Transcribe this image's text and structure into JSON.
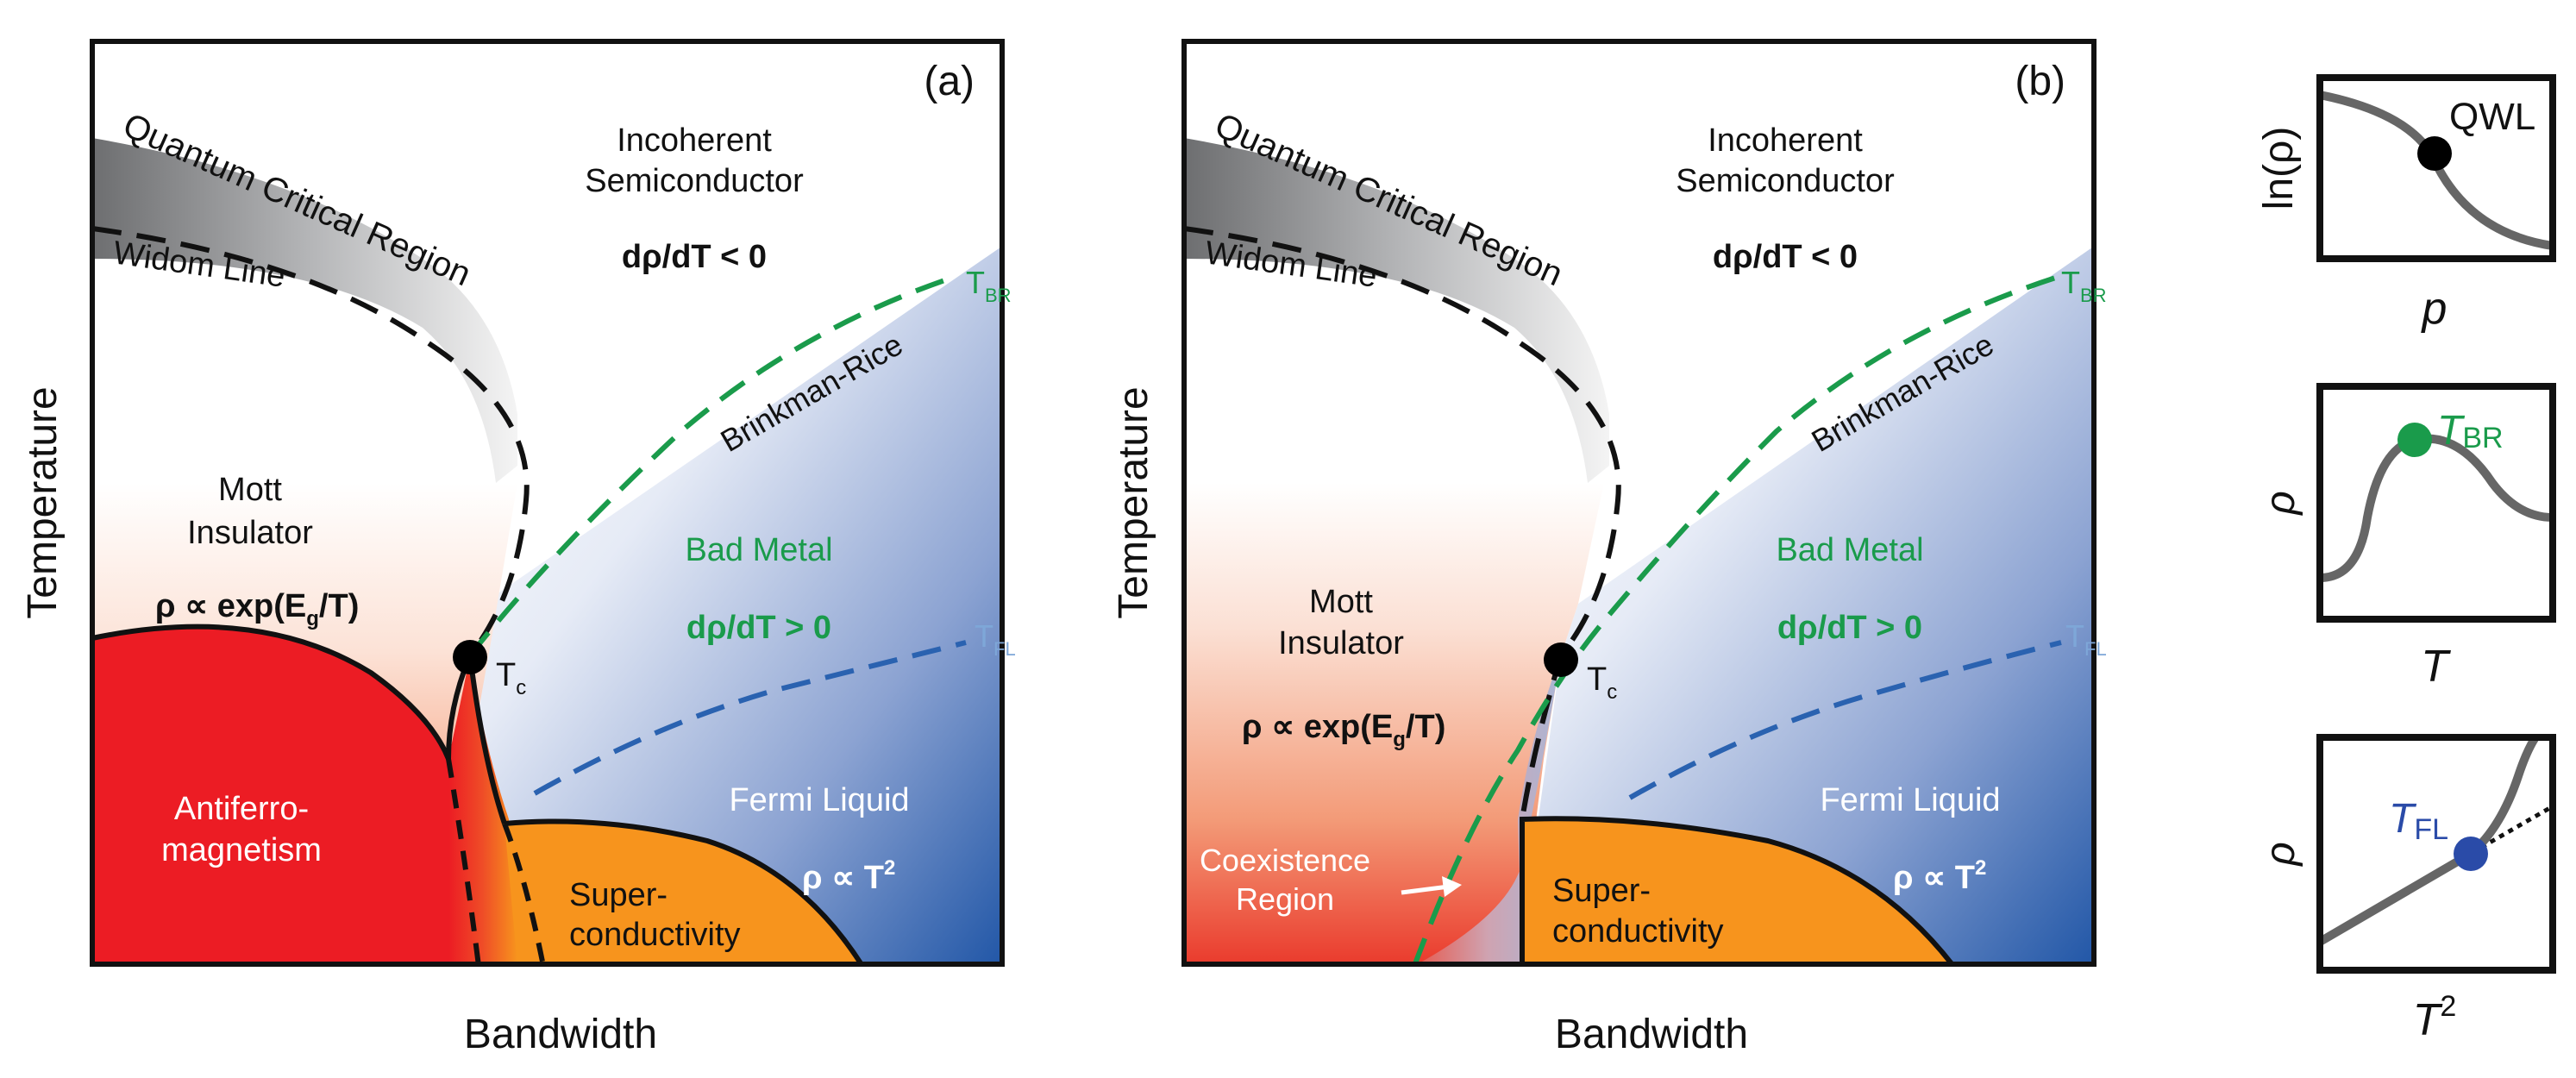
{
  "colors": {
    "afm_red": "#ec1c24",
    "sc_orange": "#f7941d",
    "metal_blue": "#2c5fac",
    "brinkman_green": "#1a9b4b",
    "fl_blue": "#2a62b0",
    "tbr_label_green": "#1a9b4b",
    "tfl_label_blue": "#7ea7d8"
  },
  "panel_a": {
    "tag": "(a)",
    "xlabel": "Bandwidth",
    "ylabel": "Temperature",
    "quantum_critical": "Quantum Critical Region",
    "widom": "Widom Line",
    "incoherent_1": "Incoherent",
    "incoherent_2": "Semiconductor",
    "drho_neg": "dρ/dT < 0",
    "tbr_main": "T",
    "tbr_sub": "BR",
    "brinkman": "Brinkman-Rice",
    "mott_1": "Mott",
    "mott_2": "Insulator",
    "mott_formula": "ρ ∝ exp(E",
    "mott_sub": "g",
    "mott_end": "/T)",
    "bad_metal": "Bad Metal",
    "drho_pos": "dρ/dT > 0",
    "tfl_main": "T",
    "tfl_sub": "FL",
    "tc_main": "T",
    "tc_sub": "c",
    "afm_1": "Antiferro-",
    "afm_2": "magnetism",
    "fermi": "Fermi Liquid",
    "fermi_formula": "ρ ∝ T",
    "fermi_sup": "2",
    "sc_1": "Super-",
    "sc_2": "conductivity"
  },
  "panel_b": {
    "tag": "(b)",
    "xlabel": "Bandwidth",
    "ylabel": "Temperature",
    "quantum_critical": "Quantum Critical Region",
    "widom": "Widom Line",
    "incoherent_1": "Incoherent",
    "incoherent_2": "Semiconductor",
    "drho_neg": "dρ/dT < 0",
    "tbr_main": "T",
    "tbr_sub": "BR",
    "brinkman": "Brinkman-Rice",
    "mott_1": "Mott",
    "mott_2": "Insulator",
    "mott_formula": "ρ ∝ exp(E",
    "mott_sub": "g",
    "mott_end": "/T)",
    "bad_metal": "Bad Metal",
    "drho_pos": "dρ/dT > 0",
    "tfl_main": "T",
    "tfl_sub": "FL",
    "tc_main": "T",
    "tc_sub": "c",
    "coexist_1": "Coexistence",
    "coexist_2": "Region",
    "fermi": "Fermi Liquid",
    "fermi_formula": "ρ ∝ T",
    "fermi_sup": "2",
    "sc_1": "Super-",
    "sc_2": "conductivity"
  },
  "insets": {
    "qwl": {
      "ylabel": "ln(ρ)",
      "xlabel": "p",
      "marker": "QWL"
    },
    "tbr": {
      "ylabel": "ρ",
      "xlabel": "T",
      "marker_main": "T",
      "marker_sub": "BR"
    },
    "tfl": {
      "ylabel": "ρ",
      "xlabel_main": "T",
      "xlabel_sup": "2",
      "marker_main": "T",
      "marker_sub": "FL"
    }
  }
}
